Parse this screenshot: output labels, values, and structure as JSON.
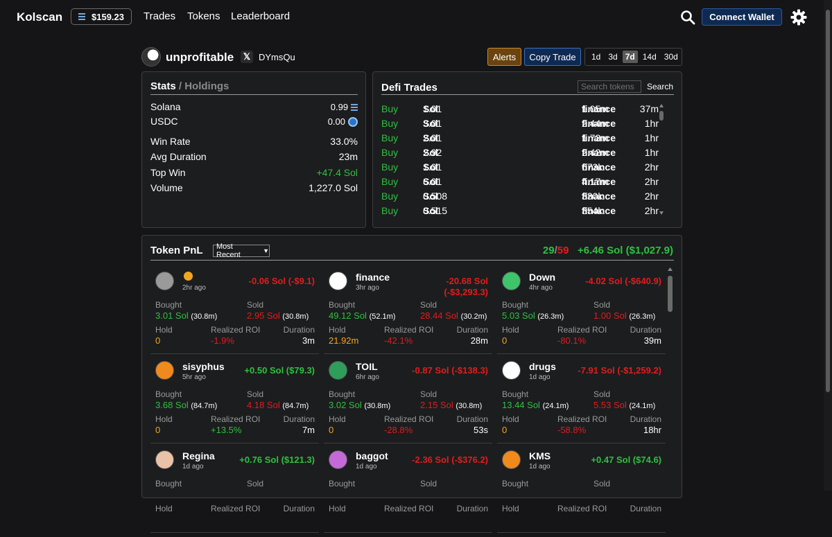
{
  "nav": {
    "brand": "Kolscan",
    "sol_price": "$159.23",
    "links": [
      "Trades",
      "Tokens",
      "Leaderboard"
    ],
    "connect_label": "Connect Wallet",
    "icons": [
      "solana-icon",
      "search-icon",
      "gear-icon"
    ]
  },
  "profile": {
    "name": "unprofitable",
    "x_label": "𝕏",
    "handle": "DYmsQu",
    "alerts_label": "Alerts",
    "copy_label": "Copy Trade",
    "ranges": [
      "1d",
      "3d",
      "7d",
      "14d",
      "30d"
    ],
    "active_range": "7d"
  },
  "stats": {
    "title_active": "Stats",
    "title_sep": " / ",
    "title_inactive": "Holdings",
    "solana_label": "Solana",
    "solana_value": "0.99",
    "usdc_label": "USDC",
    "usdc_value": "0.00",
    "winrate_label": "Win Rate",
    "winrate_value": "33.0%",
    "avgdur_label": "Avg Duration",
    "avgdur_value": "23m",
    "topwin_label": "Top Win",
    "topwin_value": "+47.4 Sol",
    "volume_label": "Volume",
    "volume_value": "1,227.0 Sol"
  },
  "defi": {
    "title": "Defi Trades",
    "search_placeholder": "Search tokens",
    "search_label": "Search",
    "trades": [
      {
        "side": "Buy",
        "amount": "1.01",
        "unit": "Sol",
        "mcap": "1.05m",
        "token": "finance",
        "age": "37m"
      },
      {
        "side": "Buy",
        "amount": "3.01",
        "unit": "Sol",
        "mcap": "2.44m",
        "token": "finance",
        "age": "1hr"
      },
      {
        "side": "Buy",
        "amount": "2.01",
        "unit": "Sol",
        "mcap": "1.73m",
        "token": "finance",
        "age": "1hr"
      },
      {
        "side": "Buy",
        "amount": "2.92",
        "unit": "Sol",
        "mcap": "2.42m",
        "token": "finance",
        "age": "1hr"
      },
      {
        "side": "Buy",
        "amount": "1.01",
        "unit": "Sol",
        "mcap": "673k",
        "token": "finance",
        "age": "2hr"
      },
      {
        "side": "Buy",
        "amount": "6.01",
        "unit": "Sol",
        "mcap": "4.17m",
        "token": "finance",
        "age": "2hr"
      },
      {
        "side": "Buy",
        "amount": "0.508",
        "unit": "Sol",
        "mcap": "330k",
        "token": "finance",
        "age": "2hr"
      },
      {
        "side": "Buy",
        "amount": "0.515",
        "unit": "Sol",
        "mcap": "354k",
        "token": "finance",
        "age": "2hr"
      }
    ]
  },
  "pnl": {
    "title": "Token PnL",
    "sort_label": "Most Recent",
    "wins": "29",
    "slash": "/",
    "total": "59",
    "summary": "+6.46 Sol ($1,027.9)",
    "labels": {
      "bought": "Bought",
      "sold": "Sold",
      "hold": "Hold",
      "roi": "Realized ROI",
      "duration": "Duration"
    },
    "cards": [
      {
        "name": "",
        "ago": "2hr ago",
        "pnl": "-0.06 Sol (-$9.1)",
        "pnl_sign": "neg",
        "bought": "3.01 Sol",
        "bought_tok": "(30.8m)",
        "sold": "2.95 Sol",
        "sold_tok": "(30.8m)",
        "hold": "0",
        "roi": "-1.9%",
        "duration": "3m",
        "icon_color": "#9a9a9a"
      },
      {
        "name": "finance",
        "ago": "3hr ago",
        "pnl": "-20.68 Sol (-$3,293.3)",
        "pnl_sign": "neg",
        "bought": "49.12 Sol",
        "bought_tok": "(52.1m)",
        "sold": "28.44 Sol",
        "sold_tok": "(30.2m)",
        "hold": "21.92m",
        "roi": "-42.1%",
        "duration": "28m",
        "icon_color": "#ffffff"
      },
      {
        "name": "Down",
        "ago": "4hr ago",
        "pnl": "-4.02 Sol (-$640.9)",
        "pnl_sign": "neg",
        "bought": "5.03 Sol",
        "bought_tok": "(26.3m)",
        "sold": "1.00 Sol",
        "sold_tok": "(26.3m)",
        "hold": "0",
        "roi": "-80.1%",
        "duration": "39m",
        "icon_color": "#3ec46b"
      },
      {
        "name": "sisyphus",
        "ago": "5hr ago",
        "pnl": "+0.50 Sol ($79.3)",
        "pnl_sign": "pos",
        "bought": "3.68 Sol",
        "bought_tok": "(84.7m)",
        "sold": "4.18 Sol",
        "sold_tok": "(84.7m)",
        "hold": "0",
        "roi": "+13.5%",
        "duration": "7m",
        "icon_color": "#f08a1c"
      },
      {
        "name": "TOIL",
        "ago": "6hr ago",
        "pnl": "-0.87 Sol (-$138.3)",
        "pnl_sign": "neg",
        "bought": "3.02 Sol",
        "bought_tok": "(30.8m)",
        "sold": "2.15 Sol",
        "sold_tok": "(30.8m)",
        "hold": "0",
        "roi": "-28.8%",
        "duration": "53s",
        "icon_color": "#2e9e5b"
      },
      {
        "name": "drugs",
        "ago": "1d ago",
        "pnl": "-7.91 Sol (-$1,259.2)",
        "pnl_sign": "neg",
        "bought": "13.44 Sol",
        "bought_tok": "(24.1m)",
        "sold": "5.53 Sol",
        "sold_tok": "(24.1m)",
        "hold": "0",
        "roi": "-58.8%",
        "duration": "18hr",
        "icon_color": "#ffffff"
      },
      {
        "name": "Regina",
        "ago": "1d ago",
        "pnl": "+0.76 Sol ($121.3)",
        "pnl_sign": "pos",
        "bought": "",
        "bought_tok": "",
        "sold": "",
        "sold_tok": "",
        "hold": "",
        "roi": "",
        "duration": "",
        "icon_color": "#e8c3a8"
      },
      {
        "name": "baggot",
        "ago": "1d ago",
        "pnl": "-2.36 Sol (-$376.2)",
        "pnl_sign": "neg",
        "bought": "",
        "bought_tok": "",
        "sold": "",
        "sold_tok": "",
        "hold": "",
        "roi": "",
        "duration": "",
        "icon_color": "#c46ad8"
      },
      {
        "name": "KMS",
        "ago": "1d ago",
        "pnl": "+0.47 Sol ($74.6)",
        "pnl_sign": "pos",
        "bought": "",
        "bought_tok": "",
        "sold": "",
        "sold_tok": "",
        "hold": "",
        "roi": "",
        "duration": "",
        "icon_color": "#f08a1c"
      }
    ]
  },
  "colors": {
    "positive": "#2ec140",
    "negative": "#e11d1d",
    "hold": "#f2a61f",
    "accent": "#0f2a52"
  }
}
